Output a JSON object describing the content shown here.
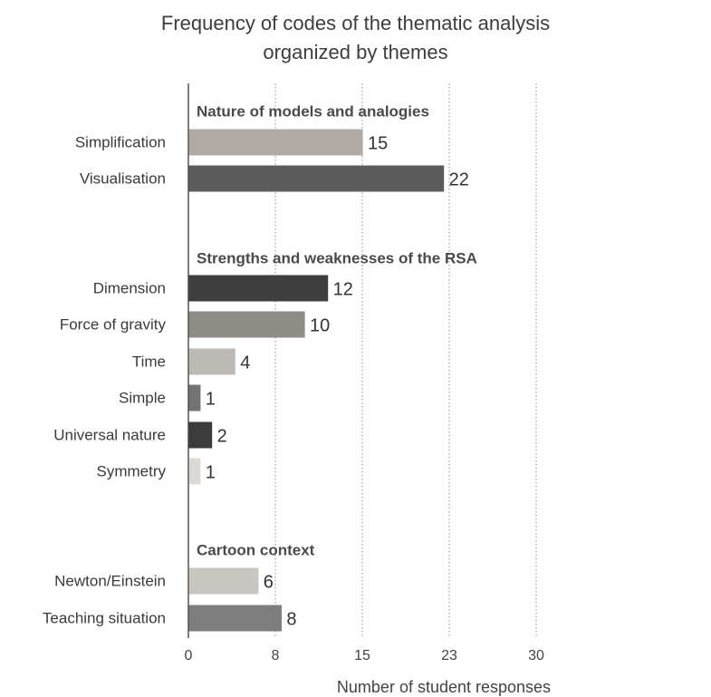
{
  "chart_data": {
    "type": "bar",
    "orientation": "horizontal",
    "title": "Frequency of codes of the thematic analysis organized by themes",
    "title_lines": [
      "Frequency of codes of the thematic analysis",
      "organized by themes"
    ],
    "xlabel": "Number of student responses",
    "ylabel": "",
    "xlim": [
      0,
      30
    ],
    "ticks": [
      {
        "value": 0,
        "label": "0"
      },
      {
        "value": 7.5,
        "label": "8"
      },
      {
        "value": 15,
        "label": "15"
      },
      {
        "value": 22.5,
        "label": "23"
      },
      {
        "value": 30,
        "label": "30"
      }
    ],
    "grid": "vertical-dotted",
    "groups": [
      {
        "name": "Nature of models and analogies",
        "bars": [
          {
            "category": "Simplification",
            "value": 15,
            "color": "#afaaa5"
          },
          {
            "category": "Visualisation",
            "value": 22,
            "color": "#5c5c5c"
          }
        ]
      },
      {
        "name": "Strengths and weaknesses of the RSA",
        "bars": [
          {
            "category": "Dimension",
            "value": 12,
            "color": "#3e3e3e"
          },
          {
            "category": "Force of gravity",
            "value": 10,
            "color": "#908c88"
          },
          {
            "category": "Time",
            "value": 4,
            "color": "#bdb9b5"
          },
          {
            "category": "Simple",
            "value": 1,
            "color": "#737373"
          },
          {
            "category": "Universal nature",
            "value": 2,
            "color": "#3b3b3b"
          },
          {
            "category": "Symmetry",
            "value": 1,
            "color": "#dcd9d5"
          }
        ]
      },
      {
        "name": "Cartoon context",
        "bars": [
          {
            "category": "Newton/Einstein",
            "value": 6,
            "color": "#c9c6c2"
          },
          {
            "category": "Teaching situation",
            "value": 8,
            "color": "#7e7e7e"
          }
        ]
      }
    ]
  }
}
